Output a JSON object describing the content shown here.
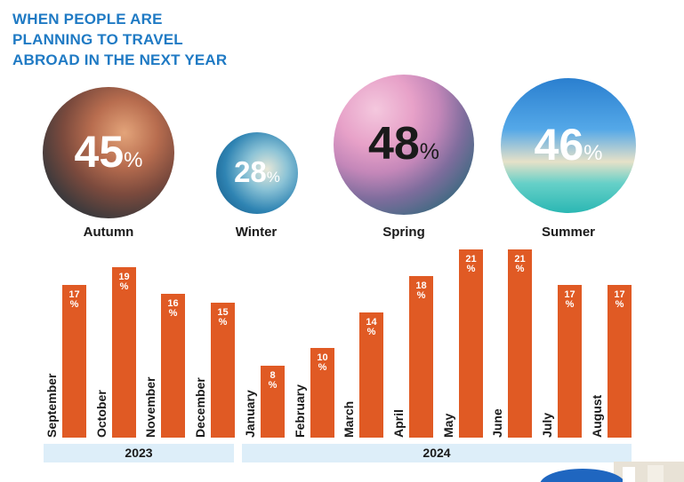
{
  "title": {
    "line1": "WHEN PEOPLE ARE",
    "line2": "PLANNING TO TRAVEL",
    "line3": "ABROAD IN THE NEXT YEAR"
  },
  "seasons": [
    {
      "value": "45",
      "symbol": "%",
      "label": "Autumn"
    },
    {
      "value": "28",
      "symbol": "%",
      "label": "Winter"
    },
    {
      "value": "48",
      "symbol": "%",
      "label": "Spring"
    },
    {
      "value": "46",
      "symbol": "%",
      "label": "Summer"
    }
  ],
  "year_groups": [
    {
      "label": "2023"
    },
    {
      "label": "2024"
    }
  ],
  "chart_data": {
    "type": "bar",
    "categories": [
      "September",
      "October",
      "November",
      "December",
      "January",
      "February",
      "March",
      "April",
      "May",
      "June",
      "July",
      "August"
    ],
    "values": [
      17,
      19,
      16,
      15,
      8,
      10,
      14,
      18,
      21,
      21,
      17,
      17
    ],
    "value_labels": [
      "17\n%",
      "19\n%",
      "16\n%",
      "15\n%",
      "8\n%",
      "10\n%",
      "14\n%",
      "18\n%",
      "21\n%",
      "21\n%",
      "17\n%",
      "17\n%"
    ],
    "colors": {
      "bar": "#e05a24",
      "title": "#1f7ac4",
      "year_band": "#ddeef9"
    }
  }
}
